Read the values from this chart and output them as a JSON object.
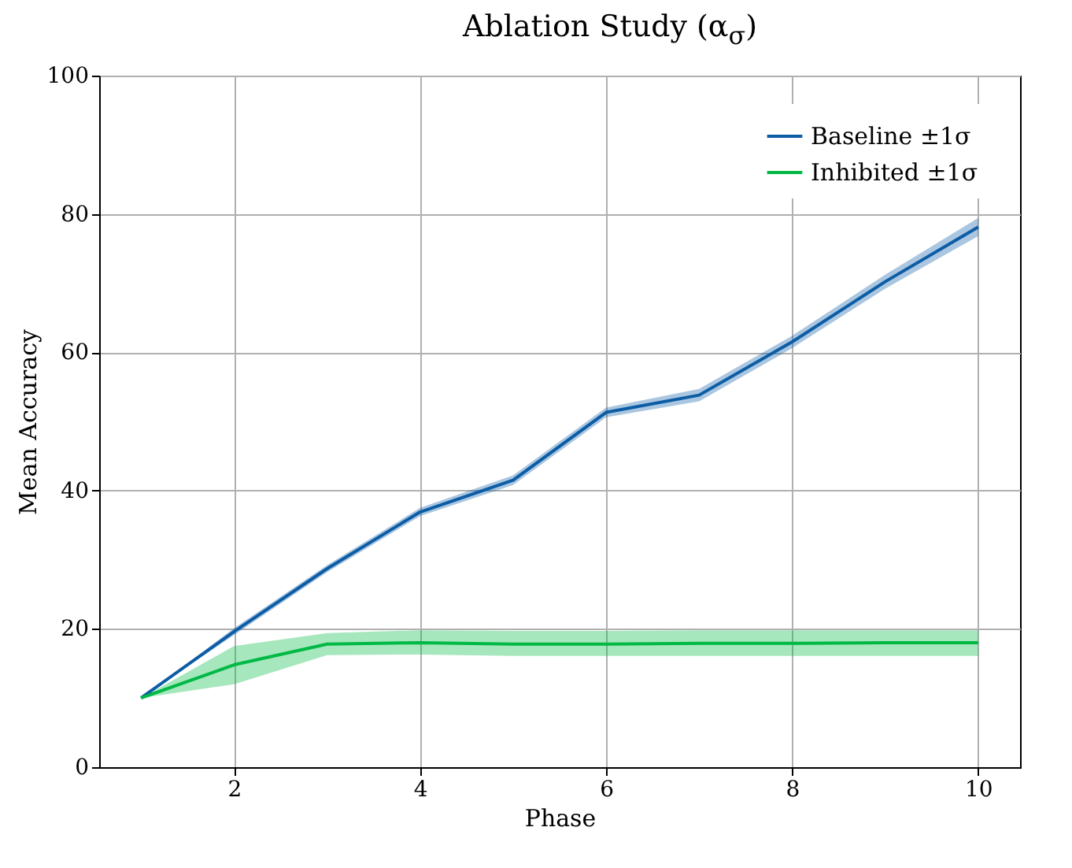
{
  "chart_data": {
    "type": "line",
    "title": "Ablation Study (α$_{σ}$)",
    "xlabel": "Phase",
    "ylabel": "Mean Accuracy",
    "x": [
      1,
      2,
      3,
      4,
      5,
      6,
      7,
      8,
      9,
      10
    ],
    "series": [
      {
        "name": "Baseline ±1σ",
        "color": "#0c5da5",
        "values": [
          10,
          19.6,
          28.7,
          36.9,
          41.5,
          51.3,
          53.8,
          61.5,
          70.2,
          78.1
        ],
        "lower": [
          10,
          19.1,
          28.2,
          36.3,
          40.8,
          50.6,
          52.9,
          60.6,
          69.2,
          76.8
        ],
        "upper": [
          10,
          20.1,
          29.2,
          37.5,
          42.2,
          52.0,
          54.7,
          62.4,
          71.2,
          79.4
        ]
      },
      {
        "name": "Inhibited ±1σ",
        "color": "#00b945",
        "values": [
          10,
          14.8,
          17.8,
          18,
          17.8,
          17.8,
          17.9,
          17.9,
          18,
          18
        ],
        "lower": [
          10,
          12,
          16.2,
          16.3,
          16.1,
          16.1,
          16.1,
          16.1,
          16.1,
          16.1
        ],
        "upper": [
          10,
          17.5,
          19.4,
          19.8,
          19.7,
          19.7,
          19.8,
          19.8,
          19.8,
          19.8
        ]
      }
    ],
    "xlim": [
      0.55,
      10.45
    ],
    "xticks": [
      2,
      4,
      6,
      8,
      10
    ],
    "ylim": [
      0,
      100
    ],
    "yticks": [
      0,
      20,
      40,
      60,
      80,
      100
    ],
    "grid": true,
    "legend": "top right",
    "line_style": "solid",
    "marker": "none"
  }
}
